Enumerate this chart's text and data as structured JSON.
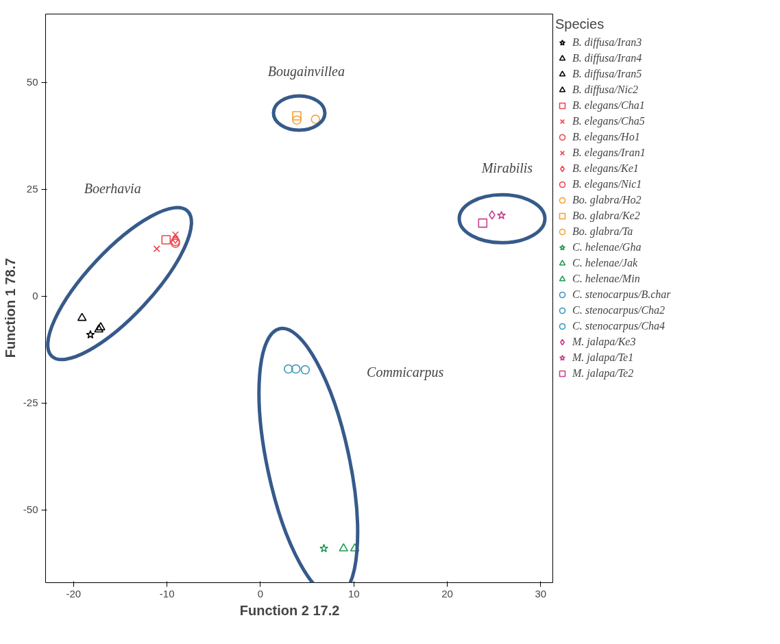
{
  "chart_data": {
    "type": "scatter",
    "xlabel": "Function 2      17.2",
    "ylabel": "Function 1      78.7",
    "legend_title": "Species",
    "xlim": [
      -23,
      31.3
    ],
    "ylim": [
      -67,
      66
    ],
    "xticks": [
      -20,
      -10,
      0,
      10,
      20,
      30
    ],
    "yticks": [
      -50,
      -25,
      0,
      25,
      50
    ],
    "grid": false,
    "legend": "right",
    "series": [
      {
        "name": "B. diffusa/Iran3",
        "color": "#000000",
        "marker": "star",
        "x": [
          -18.2
        ],
        "values": [
          -9.0
        ]
      },
      {
        "name": "B. diffusa/Iran4",
        "color": "#000000",
        "marker": "triangle",
        "x": [
          -19.1
        ],
        "values": [
          -5.1
        ]
      },
      {
        "name": "B. diffusa/Iran5",
        "color": "#000000",
        "marker": "triangle",
        "x": [
          -17.3
        ],
        "values": [
          -7.8
        ]
      },
      {
        "name": "B. diffusa/Nic2",
        "color": "#000000",
        "marker": "triangle",
        "x": [
          -17.1
        ],
        "values": [
          -7.3
        ]
      },
      {
        "name": "B. elegans/Cha1",
        "color": "#f0444c",
        "marker": "square",
        "x": [
          -10.1
        ],
        "values": [
          13.2
        ]
      },
      {
        "name": "B. elegans/Cha5",
        "color": "#f0444c",
        "marker": "cross",
        "x": [
          -11.1
        ],
        "values": [
          11.1
        ]
      },
      {
        "name": "B. elegans/Ho1",
        "color": "#f0444c",
        "marker": "circle",
        "x": [
          -9.1
        ],
        "values": [
          12.8
        ]
      },
      {
        "name": "B. elegans/Iran1",
        "color": "#f0444c",
        "marker": "cross",
        "x": [
          -9.1
        ],
        "values": [
          14.4
        ]
      },
      {
        "name": "B. elegans/Ke1",
        "color": "#f0444c",
        "marker": "diamond",
        "x": [
          -9.1
        ],
        "values": [
          13.3
        ]
      },
      {
        "name": "B. elegans/Nic1",
        "color": "#f0444c",
        "marker": "circle",
        "x": [
          -9.1
        ],
        "values": [
          12.4
        ]
      },
      {
        "name": "Bo. glabra/Ho2",
        "color": "#f5a030",
        "marker": "circle",
        "x": [
          3.9
        ],
        "values": [
          41.2
        ]
      },
      {
        "name": "Bo. glabra/Ke2",
        "color": "#f5a030",
        "marker": "square",
        "x": [
          3.9
        ],
        "values": [
          42.2
        ]
      },
      {
        "name": "Bo. glabra/Ta",
        "color": "#f5a030",
        "marker": "circle",
        "x": [
          5.9
        ],
        "values": [
          41.4
        ]
      },
      {
        "name": "C. helenae/Gha",
        "color": "#1e9a50",
        "marker": "star",
        "x": [
          6.8
        ],
        "values": [
          -59.0
        ]
      },
      {
        "name": "C. helenae/Jak",
        "color": "#1e9a50",
        "marker": "triangle",
        "x": [
          8.9
        ],
        "values": [
          -59.0
        ]
      },
      {
        "name": "C. helenae/Min",
        "color": "#1e9a50",
        "marker": "triangle",
        "x": [
          10.1
        ],
        "values": [
          -59.0
        ]
      },
      {
        "name": "C. stenocarpus/B.char",
        "color": "#3a95b8",
        "marker": "circle",
        "x": [
          4.8
        ],
        "values": [
          -17.2
        ]
      },
      {
        "name": "C. stenocarpus/Cha2",
        "color": "#3a95b8",
        "marker": "circle",
        "x": [
          3.8
        ],
        "values": [
          -17.0
        ]
      },
      {
        "name": "C. stenocarpus/Cha4",
        "color": "#3a95b8",
        "marker": "circle",
        "x": [
          3.0
        ],
        "values": [
          -17.0
        ]
      },
      {
        "name": "M. jalapa/Ke3",
        "color": "#c8408a",
        "marker": "diamond",
        "x": [
          24.8
        ],
        "values": [
          19.0
        ]
      },
      {
        "name": "M. jalapa/Te1",
        "color": "#c8408a",
        "marker": "star",
        "x": [
          25.8
        ],
        "values": [
          18.9
        ]
      },
      {
        "name": "M. jalapa/Te2",
        "color": "#c8408a",
        "marker": "square",
        "x": [
          23.8
        ],
        "values": [
          17.1
        ]
      }
    ],
    "annotations": [
      "Boerhavia",
      "Bougainvillea",
      "Mirabilis",
      "Commicarpus"
    ]
  }
}
